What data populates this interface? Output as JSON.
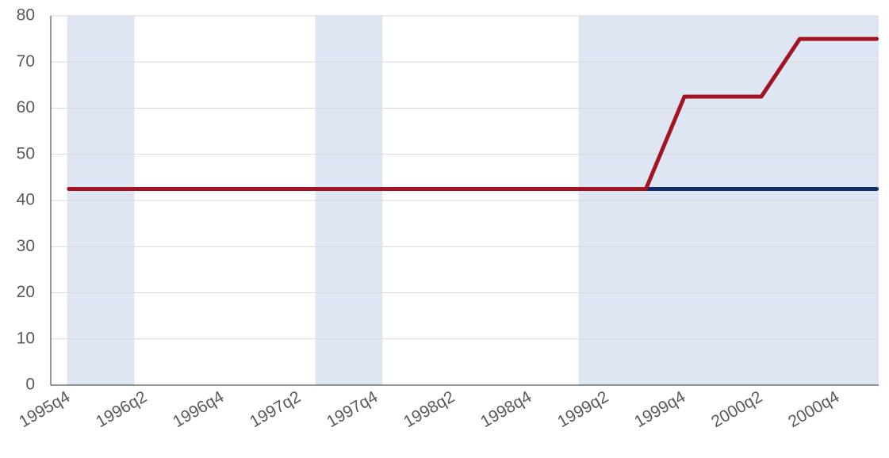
{
  "chart_data": {
    "type": "line",
    "categories": [
      "1995q4",
      null,
      "1996q2",
      null,
      "1996q4",
      null,
      "1997q2",
      null,
      "1997q4",
      null,
      "1998q2",
      null,
      "1998q4",
      null,
      "1999q2",
      null,
      "1999q4",
      null,
      "2000q2",
      null,
      "2000q4",
      null
    ],
    "series": [
      {
        "color": "#0f2b6b",
        "values": [
          42.5,
          42.5,
          42.5,
          42.5,
          42.5,
          42.5,
          42.5,
          42.5,
          42.5,
          42.5,
          42.5,
          42.5,
          42.5,
          42.5,
          42.5,
          42.5,
          42.5,
          42.5,
          42.5,
          42.5,
          42.5,
          42.5
        ]
      },
      {
        "color": "#a31423",
        "values": [
          42.5,
          42.5,
          42.5,
          42.5,
          42.5,
          42.5,
          42.5,
          42.5,
          42.5,
          42.5,
          42.5,
          42.5,
          42.5,
          42.5,
          42.5,
          42.5,
          62.5,
          62.5,
          62.5,
          75,
          75,
          75
        ]
      }
    ],
    "shaded_ranges": [
      [
        -0.05,
        1.7
      ],
      [
        6.4,
        8.15
      ],
      [
        13.25,
        21.05
      ]
    ],
    "shade_color": "#dfe6f3",
    "ylim": [
      0,
      80
    ],
    "yticks": [
      0,
      10,
      20,
      30,
      40,
      50,
      60,
      70,
      80
    ],
    "grid": true
  }
}
